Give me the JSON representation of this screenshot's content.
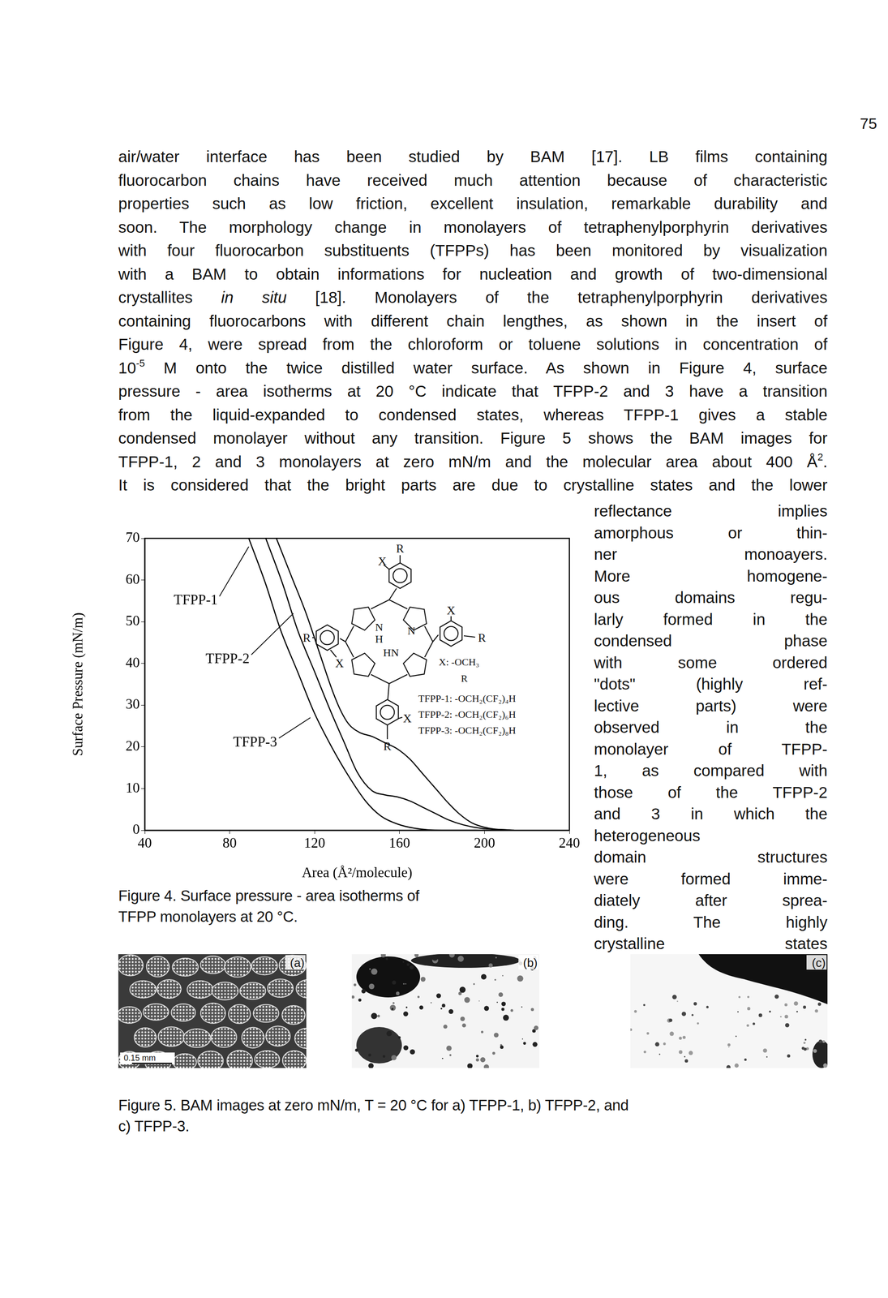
{
  "page_number": "75",
  "body_lines": [
    [
      {
        "text": "air/water interface has been studied by BAM [17]. LB films containing"
      }
    ],
    [
      {
        "text": "fluorocarbon chains have received much attention because of characteristic"
      }
    ],
    [
      {
        "text": "properties such as low friction, excellent insulation, remarkable durability and"
      }
    ],
    [
      {
        "text": "soon. The morphology change in monolayers of tetraphenylporphyrin derivatives"
      }
    ],
    [
      {
        "text": "with four fluorocarbon substituents (TFPPs) has been monitored by visualization"
      }
    ],
    [
      {
        "text": "with a BAM to obtain informations for nucleation and growth of two-dimensional"
      }
    ],
    [
      {
        "text": "crystallites "
      },
      {
        "text": "in situ",
        "italic": true
      },
      {
        "text": " [18]. Monolayers of the tetraphenylporphyrin derivatives"
      }
    ],
    [
      {
        "text": "containing fluorocarbons with different chain lengthes, as shown in the insert of"
      }
    ],
    [
      {
        "text": "Figure 4, were spread from the chloroform or toluene solutions in concentration of"
      }
    ],
    [
      {
        "text": "10"
      },
      {
        "text": "-5",
        "sup": true
      },
      {
        "text": " M onto the twice distilled water surface. As shown in Figure 4, surface"
      }
    ],
    [
      {
        "text": "pressure - area isotherms at 20 °C indicate that TFPP-2 and 3 have a transition"
      }
    ],
    [
      {
        "text": "from the liquid-expanded to condensed states, whereas TFPP-1 gives a stable"
      }
    ],
    [
      {
        "text": "condensed monolayer without any transition. Figure 5 shows the BAM images for"
      }
    ],
    [
      {
        "text": "TFPP-1, 2 and 3 monolayers at zero mN/m and the molecular area about 400 Å"
      },
      {
        "text": "2",
        "sup": true
      },
      {
        "text": "."
      }
    ],
    [
      {
        "text": "It is considered that the bright parts are due to crystalline states and the lower"
      }
    ]
  ],
  "column_lines": [
    "reflectance implies",
    "amorphous or thin-",
    "ner monoayers.",
    "More homogene-",
    "ous domains regu-",
    "larly formed in the",
    "condensed phase",
    "with some ordered",
    "\"dots\" (highly ref-",
    "lective parts) were",
    "observed in the",
    "monolayer of TFPP-",
    "1, as compared with",
    "those of the TFPP-2",
    "and 3 in which the",
    "heterogeneous",
    "domain structures",
    "were formed imme-",
    "diately after sprea-",
    "ding. The highly",
    "crystalline states"
  ],
  "chart_data": {
    "type": "line",
    "x_label": "Area (Å²/molecule)",
    "y_label": "Surface Pressure (mN/m)",
    "xlim": [
      40,
      240
    ],
    "xticks": [
      40,
      80,
      120,
      160,
      200,
      240
    ],
    "ylim": [
      0,
      70
    ],
    "yticks": [
      0,
      10,
      20,
      30,
      40,
      50,
      60,
      70
    ],
    "grid": false,
    "series": [
      {
        "color": "#000000",
        "x": [
          89,
          97,
          104,
          112,
          120,
          128,
          136,
          144,
          151,
          159,
          167,
          180,
          200
        ],
        "values": [
          70,
          59,
          48,
          38,
          28,
          20,
          13,
          7,
          3.5,
          1.5,
          0.5,
          0,
          0
        ]
      },
      {
        "color": "#000000",
        "x": [
          97,
          105,
          112,
          120,
          128,
          134,
          140,
          147,
          153,
          159,
          165,
          171,
          177,
          183,
          190,
          198,
          214
        ],
        "values": [
          70,
          59,
          48,
          38,
          28,
          21,
          14,
          9.5,
          8.5,
          8,
          7,
          5.5,
          4,
          2.5,
          1.3,
          0.5,
          0
        ]
      },
      {
        "color": "#000000",
        "x": [
          102,
          109,
          116,
          122,
          128,
          132,
          136,
          141,
          147,
          153,
          159,
          165,
          171,
          177,
          183,
          188,
          194,
          202,
          212
        ],
        "values": [
          70,
          61,
          52,
          43,
          34,
          29,
          25.5,
          23.5,
          22.5,
          21,
          19.5,
          17,
          13.5,
          10,
          6.5,
          4,
          1.8,
          0.5,
          0
        ]
      }
    ],
    "annotations": [
      {
        "text": "TFPP-1",
        "x": 64,
        "y": 55,
        "arrow_x": 89,
        "arrow_y": 68
      },
      {
        "text": "TFPP-2",
        "x": 79,
        "y": 41,
        "arrow_x": 110,
        "arrow_y": 52
      },
      {
        "text": "TFPP-3",
        "x": 92,
        "y": 21,
        "arrow_x": 118,
        "arrow_y": 27
      }
    ]
  },
  "figure4_inset": {
    "top_phenyl": {
      "R": "R",
      "X": "X"
    },
    "left_phenyl": {
      "R": "R",
      "X": "X"
    },
    "right_phenyl": {
      "R": "R",
      "X": "X"
    },
    "bottom_phenyl": {
      "R": "R",
      "X": "X"
    },
    "core": [
      "N",
      "H",
      "N",
      "HN"
    ],
    "legend_lines": [
      "X: -OCH₃",
      "R",
      "TFPP-1: -OCH₂(CF₂)₄H",
      "TFPP-2: -OCH₂(CF₂)₆H",
      "TFPP-3: -OCH₂(CF₂)₈H"
    ]
  },
  "figure4_caption": [
    "Figure 4. Surface pressure - area isotherms of",
    "TFPP monolayers at 20 °C."
  ],
  "figure5": {
    "panels": [
      "(a)",
      "(b)",
      "(c)"
    ],
    "scale_bar": "0.15 mm",
    "caption": [
      "Figure 5. BAM images at zero mN/m, T = 20 °C for a) TFPP-1, b) TFPP-2, and",
      "c) TFPP-3."
    ]
  }
}
